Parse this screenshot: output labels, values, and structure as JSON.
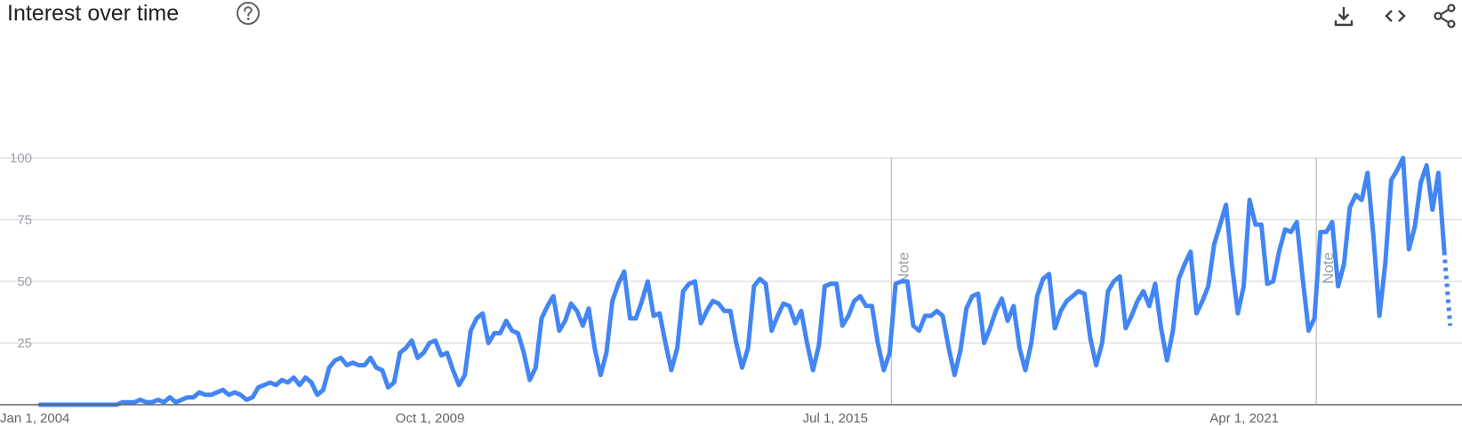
{
  "header": {
    "title": "Interest over time",
    "help_icon": "help-circle-icon",
    "actions": [
      {
        "name": "download-icon"
      },
      {
        "name": "embed-code-icon"
      },
      {
        "name": "share-icon"
      }
    ]
  },
  "colors": {
    "line": "#4285f4",
    "grid": "#dadce0",
    "axis": "#9aa0a6",
    "note": "#bdbdbd"
  },
  "chart_data": {
    "type": "line",
    "title": "Interest over time",
    "xlabel": "",
    "ylabel": "",
    "ylim": [
      0,
      100
    ],
    "yticks": [
      25,
      50,
      75,
      100
    ],
    "xticks": [
      "Jan 1, 2004",
      "Oct 1, 2009",
      "Jul 1, 2015",
      "Apr 1, 2021"
    ],
    "x_range": [
      "2004-01",
      "2024-02"
    ],
    "grid": true,
    "series": [
      {
        "start": "2004-01",
        "frequency": "monthly",
        "partial_last_point": true,
        "values": [
          0,
          0,
          0,
          0,
          0,
          0,
          0,
          0,
          0,
          0,
          0,
          0,
          0,
          0,
          1,
          1,
          1,
          2,
          1,
          1,
          2,
          1,
          3,
          1,
          2,
          3,
          3,
          5,
          4,
          4,
          5,
          6,
          4,
          5,
          4,
          2,
          3,
          7,
          8,
          9,
          8,
          10,
          9,
          11,
          8,
          11,
          9,
          4,
          6,
          15,
          18,
          19,
          16,
          17,
          16,
          16,
          19,
          15,
          14,
          7,
          9,
          21,
          23,
          26,
          19,
          21,
          25,
          26,
          20,
          21,
          14,
          8,
          12,
          30,
          35,
          37,
          25,
          29,
          29,
          34,
          30,
          29,
          21,
          10,
          15,
          35,
          40,
          44,
          30,
          34,
          41,
          38,
          32,
          39,
          23,
          12,
          21,
          42,
          49,
          54,
          35,
          35,
          42,
          50,
          36,
          37,
          25,
          14,
          23,
          46,
          49,
          50,
          33,
          38,
          42,
          41,
          38,
          38,
          25,
          15,
          23,
          48,
          51,
          49,
          30,
          36,
          41,
          40,
          33,
          38,
          25,
          14,
          24,
          48,
          49,
          49,
          32,
          36,
          42,
          44,
          40,
          40,
          25,
          14,
          21,
          49,
          50,
          50,
          32,
          30,
          36,
          36,
          38,
          36,
          23,
          12,
          22,
          39,
          44,
          45,
          25,
          31,
          38,
          43,
          34,
          40,
          23,
          14,
          25,
          44,
          51,
          53,
          31,
          38,
          42,
          44,
          46,
          45,
          27,
          16,
          25,
          46,
          50,
          52,
          31,
          36,
          42,
          46,
          40,
          49,
          31,
          18,
          30,
          51,
          57,
          62,
          37,
          42,
          48,
          65,
          73,
          81,
          57,
          37,
          48,
          83,
          73,
          73,
          49,
          50,
          62,
          71,
          70,
          74,
          51,
          30,
          35,
          70,
          70,
          74,
          48,
          57,
          80,
          85,
          83,
          94,
          68,
          36,
          57,
          91,
          95,
          100,
          63,
          72,
          90,
          97,
          79,
          94,
          62,
          32
        ]
      }
    ],
    "annotations": [
      {
        "text": "Note",
        "x": "2016-01"
      },
      {
        "text": "Note",
        "x": "2022-01"
      }
    ]
  }
}
